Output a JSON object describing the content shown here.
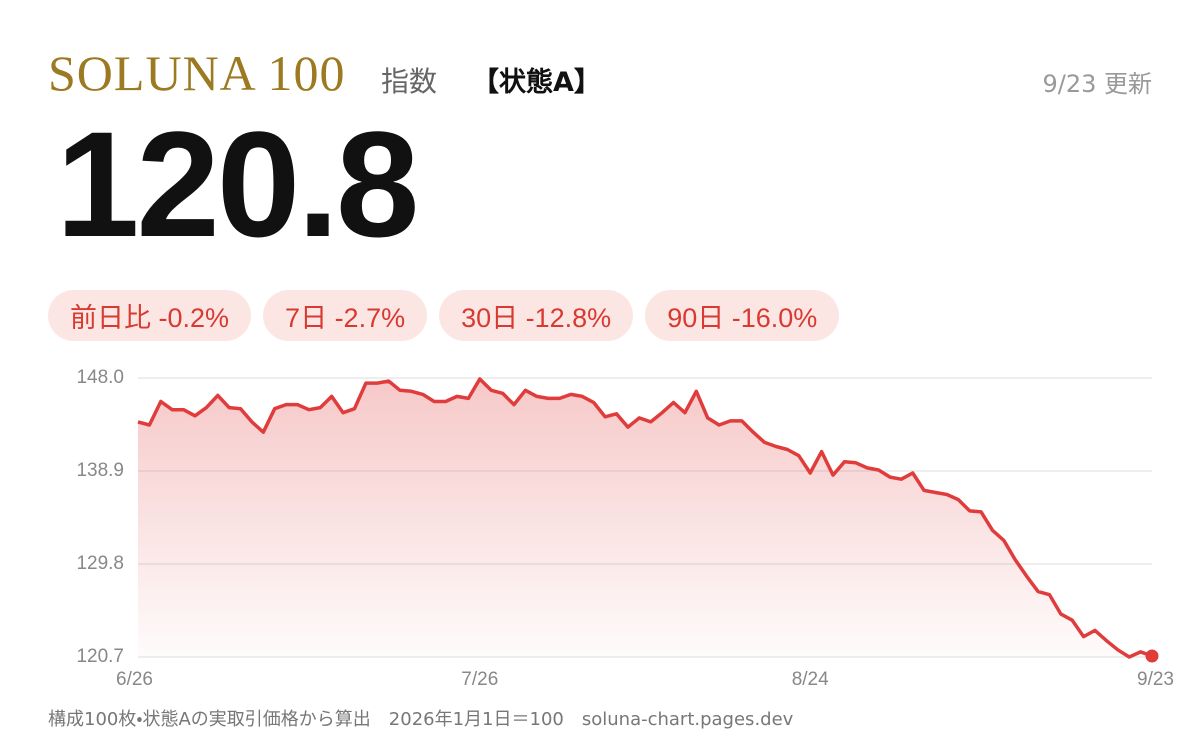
{
  "header": {
    "title": "SOLUNA 100",
    "subtitle": "指数",
    "tag": "【状態A】",
    "updated": "9/23 更新",
    "value": "120.8"
  },
  "badges": [
    "前日比 -0.2%",
    "7日 -2.7%",
    "30日 -12.8%",
    "90日 -16.0%"
  ],
  "footer": "構成100枚・状態Aの実取引価格から算出　2026年1月1日＝100　soluna-chart.pages.dev",
  "chart_data": {
    "type": "area",
    "color": "#e03c3c",
    "grid": true,
    "categories": [
      "6/26",
      null,
      null,
      null,
      null,
      null,
      null,
      null,
      null,
      null,
      null,
      null,
      null,
      null,
      null,
      null,
      null,
      null,
      null,
      null,
      null,
      null,
      null,
      null,
      null,
      null,
      null,
      null,
      null,
      null,
      "7/26",
      null,
      null,
      null,
      null,
      null,
      null,
      null,
      null,
      null,
      null,
      null,
      null,
      null,
      null,
      null,
      null,
      null,
      null,
      null,
      null,
      null,
      null,
      null,
      null,
      null,
      null,
      null,
      null,
      "8/24",
      null,
      null,
      null,
      null,
      null,
      null,
      null,
      null,
      null,
      null,
      null,
      null,
      null,
      null,
      null,
      null,
      null,
      null,
      null,
      null,
      null,
      null,
      null,
      null,
      null,
      null,
      null,
      null,
      null,
      "9/23"
    ],
    "values": [
      143.7,
      143.4,
      145.7,
      144.9,
      144.9,
      144.3,
      145.1,
      146.3,
      145.1,
      145.0,
      143.7,
      142.7,
      145.0,
      145.4,
      145.4,
      144.9,
      145.1,
      146.2,
      144.6,
      145.0,
      147.5,
      147.5,
      147.7,
      146.8,
      146.7,
      146.4,
      145.7,
      145.7,
      146.2,
      146.0,
      147.9,
      146.8,
      146.5,
      145.4,
      146.8,
      146.2,
      146.0,
      146.0,
      146.4,
      146.2,
      145.6,
      144.2,
      144.5,
      143.2,
      144.1,
      143.7,
      144.6,
      145.6,
      144.6,
      146.7,
      144.1,
      143.4,
      143.8,
      143.8,
      142.7,
      141.7,
      141.3,
      141.0,
      140.4,
      138.7,
      140.8,
      138.5,
      139.8,
      139.7,
      139.2,
      139.0,
      138.3,
      138.1,
      138.7,
      137.0,
      136.8,
      136.6,
      136.1,
      135.0,
      134.9,
      133.1,
      132.1,
      130.2,
      128.6,
      127.1,
      126.8,
      124.9,
      124.3,
      122.7,
      123.3,
      122.3,
      121.4,
      120.7,
      121.2,
      120.8
    ],
    "ylim": [
      120.7,
      148.0
    ],
    "yticks": [
      {
        "value": 148.0,
        "label": "148.0"
      },
      138.9,
      129.8,
      120.7
    ]
  }
}
